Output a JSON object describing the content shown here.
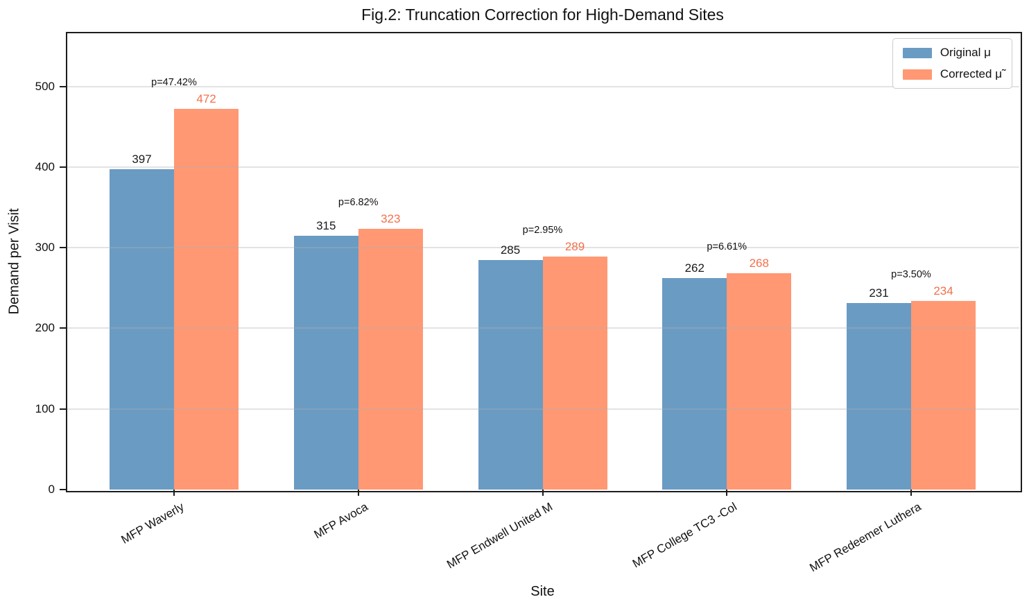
{
  "title": "Fig.2: Truncation Correction for High-Demand Sites",
  "axes": {
    "x_label": "Site",
    "y_label": "Demand per Visit"
  },
  "legend": {
    "position": "upper right",
    "entries": [
      {
        "label": "Original μ",
        "color": "#6A9BC3"
      },
      {
        "label": "Corrected μ̃",
        "color": "#FF9873"
      }
    ]
  },
  "chart_data": {
    "type": "bar",
    "title": "Fig.2: Truncation Correction for High-Demand Sites",
    "xlabel": "Site",
    "ylabel": "Demand per Visit",
    "categories": [
      "MFP Waverly",
      "MFP Avoca",
      "MFP Endwell United M",
      "MFP College TC3 -Col",
      "MFP Redeemer Luthera"
    ],
    "series": [
      {
        "name": "Original μ",
        "color": "#6A9BC3",
        "label_color": "#1a1a1a",
        "values": [
          397,
          315,
          285,
          262,
          231
        ]
      },
      {
        "name": "Corrected μ̃",
        "color": "#FF9873",
        "label_color": "#F2704B",
        "values": [
          472,
          323,
          289,
          268,
          234
        ]
      }
    ],
    "annotations": [
      "p=47.42%",
      "p=6.82%",
      "p=2.95%",
      "p=6.61%",
      "p=3.50%"
    ],
    "ylim": [
      0,
      566
    ],
    "yticks": [
      0,
      100,
      200,
      300,
      400,
      500
    ],
    "grid": "horizontal",
    "grid_color": "rgba(176,176,176,0.35)",
    "legend_position": "upper right",
    "xtick_rotation_deg": 30
  }
}
